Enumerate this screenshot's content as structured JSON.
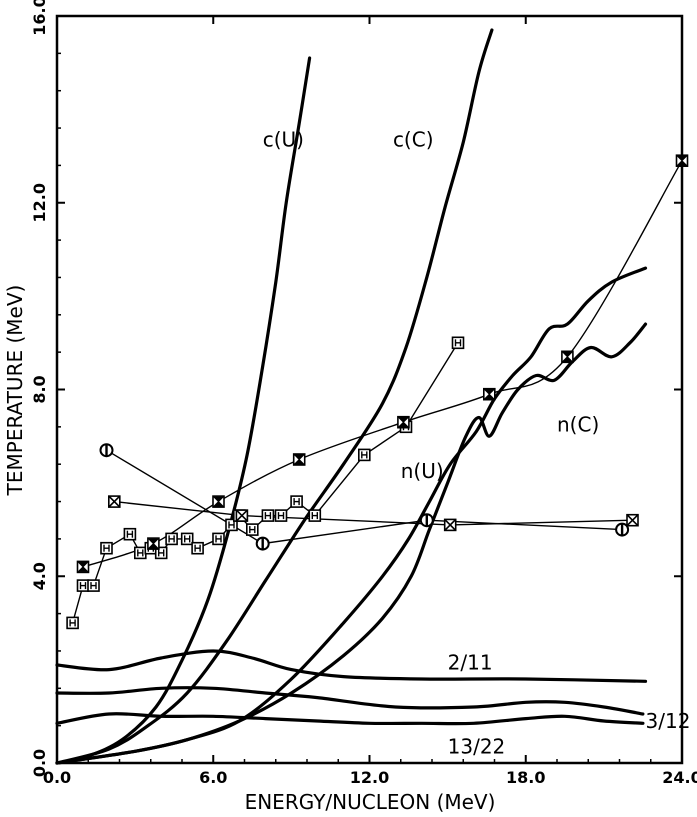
{
  "chart_data": {
    "type": "line",
    "title": "",
    "xlabel": "ENERGY/NUCLEON (MeV)",
    "ylabel": "TEMPERATURE (MeV)",
    "xlim": [
      0,
      24
    ],
    "ylim": [
      0,
      16
    ],
    "xticks": [
      0,
      6,
      12,
      18,
      24
    ],
    "yticks": [
      0,
      4,
      8,
      12,
      16
    ],
    "xtick_labels": [
      "0.0",
      "6.0",
      "12.0",
      "18.0",
      "24.0"
    ],
    "ytick_labels": [
      "0.0",
      "4.0",
      "8.0",
      "12.0",
      "16.0"
    ],
    "grid": false,
    "colors": {
      "ink": "#000000",
      "background": "#ffffff"
    },
    "curves": [
      {
        "label": "c(U)",
        "label_at": [
          7.9,
          13.2
        ],
        "points": [
          [
            0,
            0
          ],
          [
            1.2,
            0.15
          ],
          [
            2.5,
            0.5
          ],
          [
            3.8,
            1.2
          ],
          [
            4.8,
            2.2
          ],
          [
            5.8,
            3.5
          ],
          [
            6.6,
            5.0
          ],
          [
            7.3,
            6.6
          ],
          [
            7.9,
            8.5
          ],
          [
            8.4,
            10.3
          ],
          [
            8.8,
            12.0
          ],
          [
            9.3,
            13.7
          ],
          [
            9.7,
            15.1
          ]
        ]
      },
      {
        "label": "c(C)",
        "label_at": [
          12.9,
          13.2
        ],
        "points": [
          [
            0,
            0
          ],
          [
            2,
            0.3
          ],
          [
            3.5,
            0.8
          ],
          [
            5,
            1.5
          ],
          [
            6.5,
            2.6
          ],
          [
            8,
            3.9
          ],
          [
            9.5,
            5.2
          ],
          [
            11,
            6.4
          ],
          [
            12.5,
            7.7
          ],
          [
            13.4,
            8.9
          ],
          [
            14.2,
            10.4
          ],
          [
            14.9,
            11.9
          ],
          [
            15.6,
            13.3
          ],
          [
            16.2,
            14.8
          ],
          [
            16.7,
            15.7
          ]
        ]
      },
      {
        "label": "n(U)",
        "label_at": [
          13.2,
          6.1
        ],
        "points": [
          [
            0,
            0
          ],
          [
            3,
            0.25
          ],
          [
            5,
            0.5
          ],
          [
            7,
            0.9
          ],
          [
            9,
            1.8
          ],
          [
            11,
            3.0
          ],
          [
            12.5,
            4.0
          ],
          [
            13.5,
            4.8
          ],
          [
            14.3,
            5.6
          ],
          [
            15.1,
            6.4
          ],
          [
            16.1,
            7.1
          ],
          [
            16.8,
            7.8
          ],
          [
            17.5,
            8.3
          ],
          [
            18.2,
            8.7
          ],
          [
            18.9,
            9.3
          ],
          [
            19.6,
            9.4
          ],
          [
            20.4,
            9.9
          ],
          [
            21.3,
            10.3
          ],
          [
            22.6,
            10.6
          ]
        ]
      },
      {
        "label": "n(C)",
        "label_at": [
          19.2,
          7.1
        ],
        "points": [
          [
            0,
            0
          ],
          [
            3,
            0.25
          ],
          [
            5,
            0.5
          ],
          [
            7,
            0.9
          ],
          [
            9,
            1.5
          ],
          [
            11,
            2.3
          ],
          [
            12.5,
            3.1
          ],
          [
            13.6,
            4.0
          ],
          [
            14.3,
            5.0
          ],
          [
            15,
            6.0
          ],
          [
            15.7,
            7.0
          ],
          [
            16.2,
            7.4
          ],
          [
            16.6,
            7.0
          ],
          [
            17.1,
            7.5
          ],
          [
            17.7,
            8.0
          ],
          [
            18.4,
            8.3
          ],
          [
            19.1,
            8.2
          ],
          [
            19.8,
            8.6
          ],
          [
            20.5,
            8.9
          ],
          [
            21.3,
            8.7
          ],
          [
            22,
            9.0
          ],
          [
            22.6,
            9.4
          ]
        ]
      },
      {
        "label": "2/11",
        "label_at": [
          15.0,
          2.0
        ],
        "points": [
          [
            0,
            2.1
          ],
          [
            2,
            2.0
          ],
          [
            4,
            2.25
          ],
          [
            6,
            2.4
          ],
          [
            7.5,
            2.25
          ],
          [
            9,
            2.0
          ],
          [
            11,
            1.85
          ],
          [
            14,
            1.8
          ],
          [
            18,
            1.8
          ],
          [
            22.6,
            1.75
          ]
        ]
      },
      {
        "label": "3/12",
        "label_at": [
          22.6,
          0.75
        ],
        "points": [
          [
            0,
            1.5
          ],
          [
            2,
            1.5
          ],
          [
            4,
            1.6
          ],
          [
            6,
            1.6
          ],
          [
            8,
            1.5
          ],
          [
            10,
            1.4
          ],
          [
            13,
            1.2
          ],
          [
            16,
            1.2
          ],
          [
            18,
            1.3
          ],
          [
            19.5,
            1.3
          ],
          [
            21,
            1.2
          ],
          [
            22.5,
            1.05
          ]
        ]
      },
      {
        "label": "13/22",
        "label_at": [
          15.0,
          0.2
        ],
        "points": [
          [
            0,
            0.85
          ],
          [
            2,
            1.05
          ],
          [
            4,
            1.0
          ],
          [
            6,
            1.0
          ],
          [
            8,
            0.95
          ],
          [
            10,
            0.9
          ],
          [
            12,
            0.85
          ],
          [
            14,
            0.85
          ],
          [
            16,
            0.85
          ],
          [
            18,
            0.95
          ],
          [
            19.5,
            1.0
          ],
          [
            21,
            0.9
          ],
          [
            22.5,
            0.85
          ]
        ]
      }
    ],
    "series": [
      {
        "marker": "square",
        "points": [
          [
            0.6,
            3.0
          ],
          [
            1.0,
            3.8
          ],
          [
            1.4,
            3.8
          ],
          [
            1.9,
            4.6
          ],
          [
            2.8,
            4.9
          ],
          [
            3.2,
            4.5
          ],
          [
            3.6,
            4.6
          ],
          [
            4.0,
            4.5
          ],
          [
            4.4,
            4.8
          ],
          [
            5.0,
            4.8
          ],
          [
            5.4,
            4.6
          ],
          [
            6.2,
            4.8
          ],
          [
            6.7,
            5.1
          ],
          [
            7.0,
            5.3
          ],
          [
            7.5,
            5.0
          ],
          [
            8.1,
            5.3
          ],
          [
            8.6,
            5.3
          ],
          [
            9.2,
            5.6
          ],
          [
            9.9,
            5.3
          ],
          [
            11.8,
            6.6
          ],
          [
            13.4,
            7.2
          ],
          [
            15.4,
            9.0
          ]
        ]
      },
      {
        "marker": "hourglass",
        "points": [
          [
            1.0,
            4.2
          ],
          [
            3.7,
            4.7
          ],
          [
            6.2,
            5.6
          ],
          [
            9.3,
            6.5
          ],
          [
            13.3,
            7.3
          ],
          [
            16.6,
            7.9
          ],
          [
            19.6,
            8.7
          ],
          [
            24.0,
            12.9
          ]
        ]
      },
      {
        "marker": "x-box",
        "points": [
          [
            2.2,
            5.6
          ],
          [
            7.1,
            5.3
          ],
          [
            15.1,
            5.1
          ],
          [
            22.1,
            5.2
          ]
        ]
      },
      {
        "marker": "circle-bar",
        "points": [
          [
            1.9,
            6.7
          ],
          [
            7.9,
            4.7
          ],
          [
            14.2,
            5.2
          ],
          [
            21.7,
            5.0
          ]
        ]
      }
    ]
  }
}
